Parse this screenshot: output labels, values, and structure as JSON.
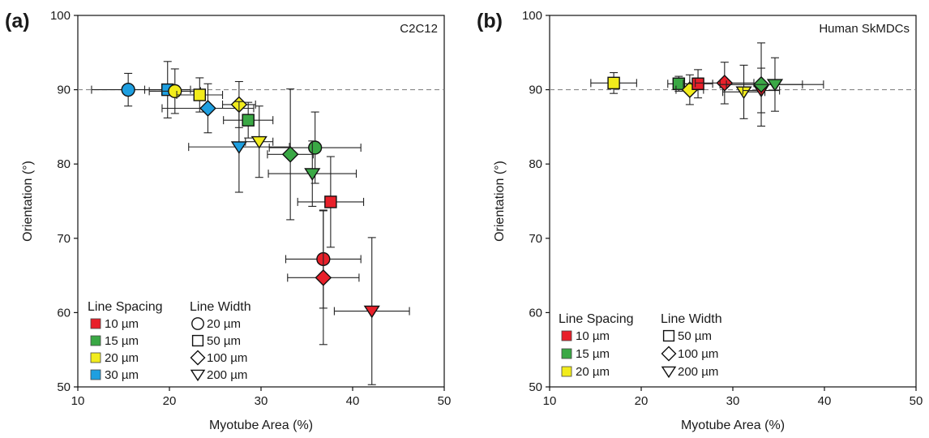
{
  "colors": {
    "10 µm": "#e8202a",
    "15 µm": "#3aa845",
    "20 µm": "#f2ec1c",
    "30 µm": "#1e9fe0"
  },
  "legend_titles": {
    "spacing": "Line Spacing",
    "width": "Line Width"
  },
  "chart_data": [
    {
      "type": "scatter",
      "panel_label": "(a)",
      "inset_label": "C2C12",
      "xlabel": "Myotube Area (%)",
      "ylabel": "Orientation (°)",
      "xlim": [
        10,
        50
      ],
      "ylim": [
        50,
        100
      ],
      "x_ticks": [
        "10",
        "20",
        "30",
        "40",
        "50"
      ],
      "y_ticks": [
        "50",
        "60",
        "70",
        "80",
        "90",
        "100"
      ],
      "reference_line_y": 90,
      "legend_spacing": [
        "10 µm",
        "15 µm",
        "20 µm",
        "30 µm"
      ],
      "legend_width": [
        {
          "label": "20 µm",
          "shape": "circle"
        },
        {
          "label": "50 µm",
          "shape": "square"
        },
        {
          "label": "100 µm",
          "shape": "diamond"
        },
        {
          "label": "200 µm",
          "shape": "triangle"
        }
      ],
      "points": [
        {
          "spacing": "30 µm",
          "shape": "circle",
          "x": 15.5,
          "y": 90.0,
          "xerr": 4.0,
          "yerr": 2.2
        },
        {
          "spacing": "30 µm",
          "shape": "square",
          "x": 19.8,
          "y": 90.0,
          "xerr": 2.5,
          "yerr": 3.8
        },
        {
          "spacing": "20 µm",
          "shape": "circle",
          "x": 20.6,
          "y": 89.8,
          "xerr": 2.8,
          "yerr": 3.0
        },
        {
          "spacing": "20 µm",
          "shape": "square",
          "x": 23.3,
          "y": 89.3,
          "xerr": 2.5,
          "yerr": 2.3
        },
        {
          "spacing": "30 µm",
          "shape": "diamond",
          "x": 24.2,
          "y": 87.5,
          "xerr": 5.0,
          "yerr": 3.3
        },
        {
          "spacing": "20 µm",
          "shape": "diamond",
          "x": 27.6,
          "y": 88.0,
          "xerr": 1.8,
          "yerr": 3.1
        },
        {
          "spacing": "15 µm",
          "shape": "square",
          "x": 28.6,
          "y": 85.9,
          "xerr": 2.7,
          "yerr": 2.4
        },
        {
          "spacing": "30 µm",
          "shape": "triangle",
          "x": 27.6,
          "y": 82.3,
          "xerr": 5.5,
          "yerr": 6.1
        },
        {
          "spacing": "20 µm",
          "shape": "triangle",
          "x": 29.8,
          "y": 83.0,
          "xerr": 1.5,
          "yerr": 4.8
        },
        {
          "spacing": "15 µm",
          "shape": "diamond",
          "x": 33.2,
          "y": 81.3,
          "xerr": 2.5,
          "yerr": 8.8
        },
        {
          "spacing": "15 µm",
          "shape": "circle",
          "x": 35.9,
          "y": 82.2,
          "xerr": 5.0,
          "yerr": 4.8
        },
        {
          "spacing": "15 µm",
          "shape": "triangle",
          "x": 35.6,
          "y": 78.7,
          "xerr": 4.8,
          "yerr": 4.4
        },
        {
          "spacing": "10 µm",
          "shape": "square",
          "x": 37.6,
          "y": 74.9,
          "xerr": 3.6,
          "yerr": 6.1
        },
        {
          "spacing": "10 µm",
          "shape": "circle",
          "x": 36.8,
          "y": 67.2,
          "xerr": 4.1,
          "yerr": 6.6
        },
        {
          "spacing": "10 µm",
          "shape": "diamond",
          "x": 36.8,
          "y": 64.7,
          "xerr": 3.9,
          "yerr": 9.0
        },
        {
          "spacing": "10 µm",
          "shape": "triangle",
          "x": 42.1,
          "y": 60.2,
          "xerr": 4.1,
          "yerr": 9.9
        }
      ]
    },
    {
      "type": "scatter",
      "panel_label": "(b)",
      "inset_label": "Human SkMDCs",
      "xlabel": "Myotube Area (%)",
      "ylabel": "Orientation (°)",
      "xlim": [
        10,
        50
      ],
      "ylim": [
        50,
        100
      ],
      "x_ticks": [
        "10",
        "20",
        "30",
        "40",
        "50"
      ],
      "y_ticks": [
        "50",
        "60",
        "70",
        "80",
        "90",
        "100"
      ],
      "reference_line_y": 90,
      "legend_spacing": [
        "10 µm",
        "15 µm",
        "20 µm"
      ],
      "legend_width": [
        {
          "label": "50 µm",
          "shape": "square"
        },
        {
          "label": "100 µm",
          "shape": "diamond"
        },
        {
          "label": "200 µm",
          "shape": "triangle"
        }
      ],
      "points": [
        {
          "spacing": "20 µm",
          "shape": "square",
          "x": 17.0,
          "y": 90.9,
          "xerr": 2.5,
          "yerr": 1.4
        },
        {
          "spacing": "15 µm",
          "shape": "square",
          "x": 24.1,
          "y": 90.8,
          "xerr": 1.2,
          "yerr": 1.0
        },
        {
          "spacing": "20 µm",
          "shape": "diamond",
          "x": 25.3,
          "y": 90.0,
          "xerr": 1.5,
          "yerr": 2.0
        },
        {
          "spacing": "10 µm",
          "shape": "square",
          "x": 26.2,
          "y": 90.8,
          "xerr": 1.6,
          "yerr": 1.9
        },
        {
          "spacing": "10 µm",
          "shape": "diamond",
          "x": 29.1,
          "y": 90.9,
          "xerr": 3.2,
          "yerr": 2.8
        },
        {
          "spacing": "20 µm",
          "shape": "triangle",
          "x": 31.2,
          "y": 89.7,
          "xerr": 2.3,
          "yerr": 3.6
        },
        {
          "spacing": "10 µm",
          "shape": "triangle",
          "x": 33.1,
          "y": 89.9,
          "xerr": 2.0,
          "yerr": 3.0
        },
        {
          "spacing": "15 µm",
          "shape": "diamond",
          "x": 33.1,
          "y": 90.7,
          "xerr": 4.5,
          "yerr": 5.6
        },
        {
          "spacing": "15 µm",
          "shape": "triangle",
          "x": 34.6,
          "y": 90.7,
          "xerr": 5.3,
          "yerr": 3.6
        }
      ]
    }
  ]
}
